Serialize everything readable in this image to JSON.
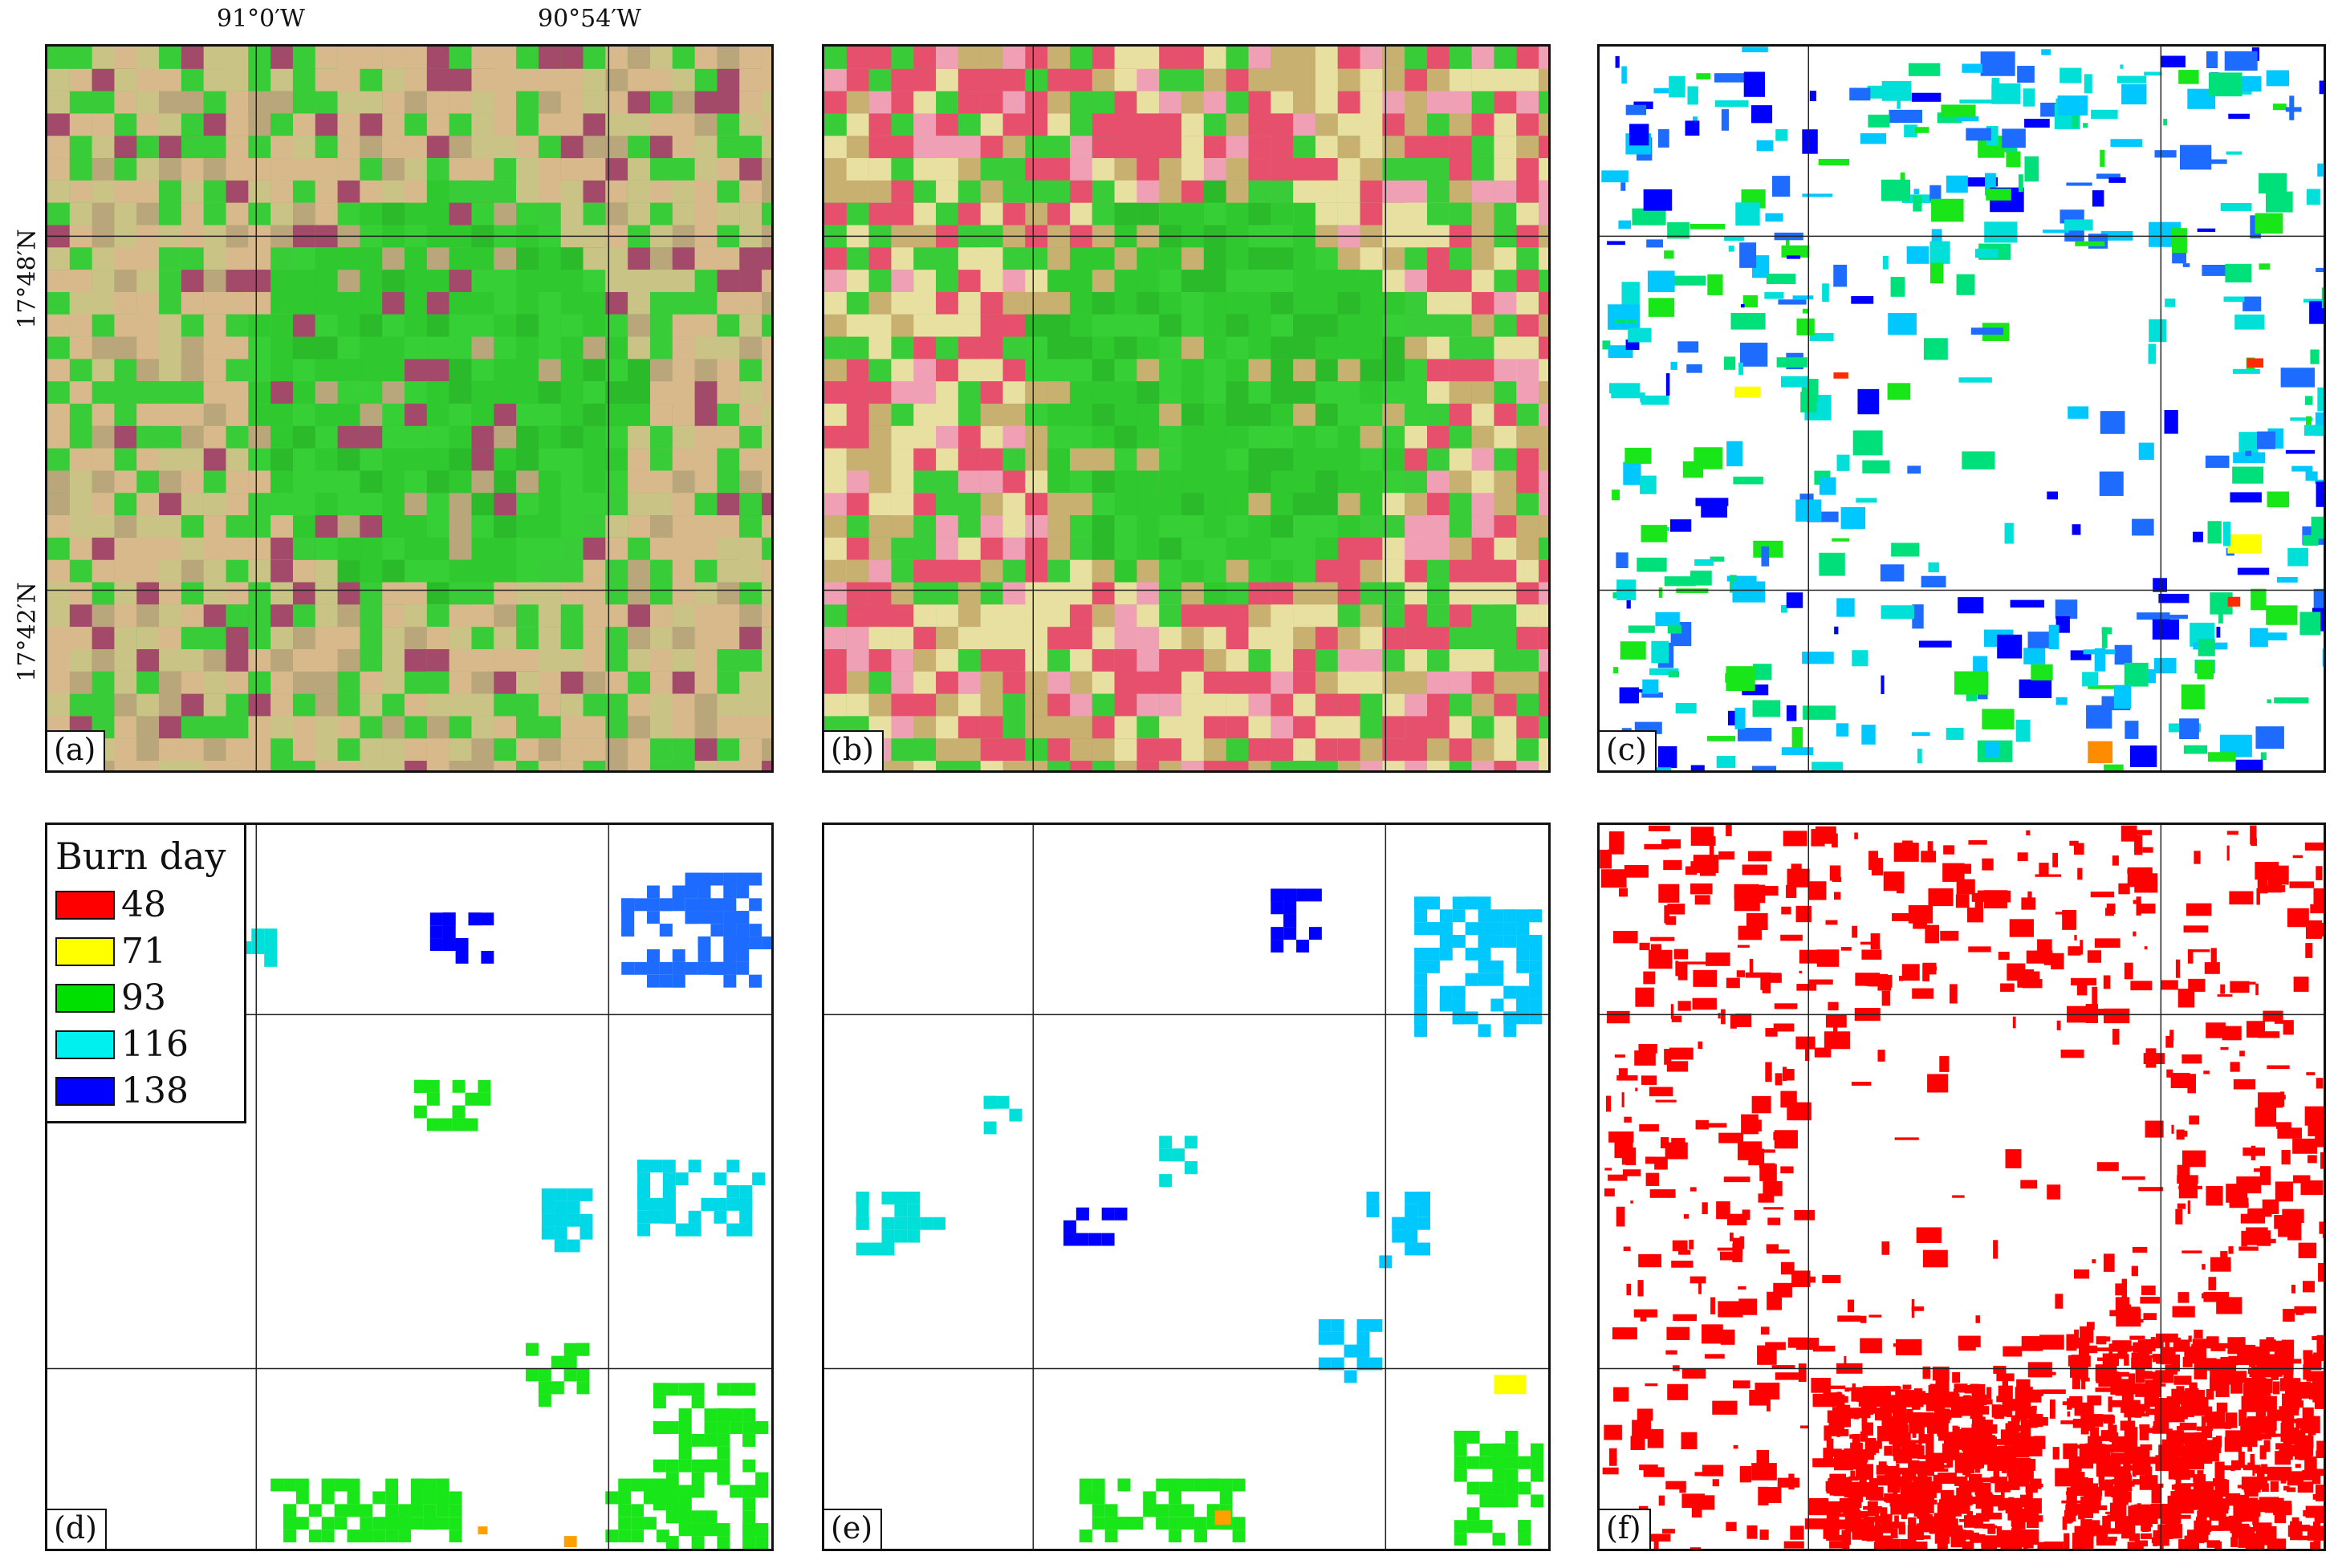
{
  "coords": {
    "lon_left": "91°0′W",
    "lon_right": "90°54′W",
    "lat_top": "17°48′N",
    "lat_bottom": "17°42′N"
  },
  "panels": [
    {
      "id": "a",
      "label": "(a)",
      "kind": "satellite-green"
    },
    {
      "id": "b",
      "label": "(b)",
      "kind": "satellite-pink"
    },
    {
      "id": "c",
      "label": "(c)",
      "kind": "burn-fine"
    },
    {
      "id": "d",
      "label": "(d)",
      "kind": "burn-coarse"
    },
    {
      "id": "e",
      "label": "(e)",
      "kind": "burn-coarse-sparse"
    },
    {
      "id": "f",
      "label": "(f)",
      "kind": "burn-red"
    }
  ],
  "legend": {
    "title": "Burn day",
    "items": [
      {
        "value": "48",
        "color": "#ff0000"
      },
      {
        "value": "71",
        "color": "#ffff00"
      },
      {
        "value": "93",
        "color": "#00e000"
      },
      {
        "value": "116",
        "color": "#00f0f0"
      },
      {
        "value": "138",
        "color": "#0000ff"
      }
    ]
  },
  "colors": {
    "forest": "#2fd02f",
    "pasture": "#d9b98a",
    "pink": "#e8506a",
    "burn_red": "#ff0000"
  }
}
